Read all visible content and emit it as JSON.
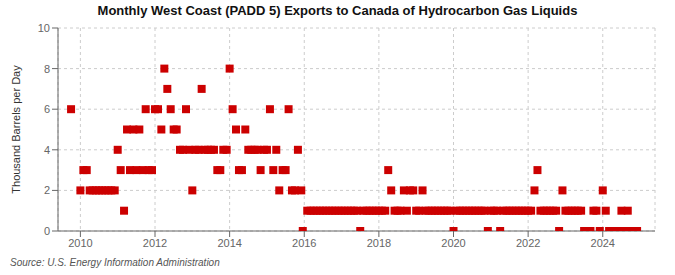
{
  "chart_data": {
    "type": "scatter",
    "title": "Monthly West Coast (PADD 5) Exports to Canada of Hydrocarbon Gas Liquids",
    "y_label": "Thousand Barrels per Day",
    "annotations": [
      "Source: U.S. Energy Information Administration"
    ],
    "color": "#cc0000",
    "marker": "square",
    "grid": true,
    "x": [
      2009.75,
      2010.0,
      2010.08,
      2010.17,
      2010.25,
      2010.33,
      2010.42,
      2010.5,
      2010.58,
      2010.67,
      2010.75,
      2010.83,
      2010.92,
      2011.0,
      2011.08,
      2011.17,
      2011.25,
      2011.33,
      2011.42,
      2011.5,
      2011.58,
      2011.67,
      2011.75,
      2011.83,
      2011.92,
      2012.0,
      2012.08,
      2012.17,
      2012.25,
      2012.33,
      2012.42,
      2012.5,
      2012.58,
      2012.67,
      2012.75,
      2012.83,
      2012.92,
      2013.0,
      2013.08,
      2013.17,
      2013.25,
      2013.33,
      2013.42,
      2013.5,
      2013.58,
      2013.67,
      2013.75,
      2013.83,
      2013.92,
      2014.0,
      2014.08,
      2014.17,
      2014.25,
      2014.33,
      2014.42,
      2014.5,
      2014.58,
      2014.67,
      2014.75,
      2014.83,
      2014.92,
      2015.0,
      2015.08,
      2015.17,
      2015.25,
      2015.33,
      2015.42,
      2015.5,
      2015.58,
      2015.67,
      2015.75,
      2015.83,
      2015.92,
      2015.96,
      2016.08,
      2016.17,
      2016.25,
      2016.33,
      2016.42,
      2016.5,
      2016.58,
      2016.67,
      2016.75,
      2016.83,
      2016.92,
      2017.0,
      2017.08,
      2017.17,
      2017.25,
      2017.33,
      2017.42,
      2017.5,
      2017.58,
      2017.67,
      2017.75,
      2017.83,
      2017.92,
      2018.0,
      2018.08,
      2018.17,
      2018.25,
      2018.33,
      2018.42,
      2018.5,
      2018.58,
      2018.67,
      2018.75,
      2018.83,
      2018.92,
      2019.0,
      2019.08,
      2019.17,
      2019.25,
      2019.33,
      2019.42,
      2019.5,
      2019.58,
      2019.67,
      2019.75,
      2019.83,
      2019.92,
      2020.0,
      2020.08,
      2020.17,
      2020.25,
      2020.33,
      2020.42,
      2020.5,
      2020.58,
      2020.67,
      2020.75,
      2020.83,
      2020.92,
      2021.0,
      2021.08,
      2021.17,
      2021.25,
      2021.33,
      2021.42,
      2021.5,
      2021.58,
      2021.67,
      2021.75,
      2021.83,
      2021.92,
      2022.0,
      2022.08,
      2022.17,
      2022.25,
      2022.33,
      2022.42,
      2022.5,
      2022.58,
      2022.67,
      2022.75,
      2022.83,
      2022.92,
      2023.0,
      2023.08,
      2023.17,
      2023.25,
      2023.33,
      2023.42,
      2023.5,
      2023.58,
      2023.67,
      2023.75,
      2023.83,
      2023.92,
      2024.0,
      2024.08,
      2024.17,
      2024.25,
      2024.33,
      2024.42,
      2024.5,
      2024.58,
      2024.67,
      2024.75,
      2024.83,
      2024.92
    ],
    "values": [
      6,
      2,
      3,
      3,
      2,
      2,
      2,
      2,
      2,
      2,
      2,
      2,
      2,
      4,
      3,
      1,
      5,
      3,
      5,
      3,
      5,
      3,
      6,
      3,
      3,
      6,
      6,
      5,
      8,
      7,
      6,
      5,
      5,
      4,
      4,
      6,
      4,
      2,
      4,
      4,
      7,
      4,
      4,
      4,
      4,
      3,
      3,
      4,
      4,
      8,
      6,
      5,
      3,
      3,
      5,
      4,
      4,
      4,
      4,
      3,
      4,
      4,
      6,
      3,
      4,
      2,
      3,
      3,
      6,
      2,
      2,
      4,
      2,
      0,
      1,
      1,
      1,
      1,
      1,
      1,
      1,
      1,
      1,
      1,
      1,
      1,
      1,
      1,
      1,
      1,
      1,
      0,
      1,
      1,
      1,
      1,
      1,
      1,
      1,
      1,
      3,
      2,
      1,
      1,
      1,
      2,
      1,
      2,
      2,
      1,
      1,
      2,
      1,
      1,
      1,
      1,
      1,
      1,
      1,
      1,
      1,
      0,
      1,
      1,
      1,
      1,
      1,
      1,
      1,
      1,
      1,
      1,
      0,
      1,
      1,
      1,
      0,
      1,
      1,
      1,
      1,
      1,
      1,
      1,
      1,
      1,
      1,
      2,
      3,
      1,
      1,
      1,
      1,
      1,
      1,
      0,
      2,
      1,
      1,
      1,
      1,
      1,
      1,
      0,
      0,
      0,
      1,
      1,
      0,
      2,
      1,
      0,
      0,
      0,
      0,
      1,
      0,
      1,
      0,
      0,
      0
    ],
    "xlim": [
      2009.4,
      2025.4
    ],
    "xticks": [
      2010,
      2012,
      2014,
      2016,
      2018,
      2020,
      2022,
      2024
    ],
    "ylim": [
      0,
      10
    ],
    "yticks": [
      0,
      2,
      4,
      6,
      8,
      10
    ]
  }
}
